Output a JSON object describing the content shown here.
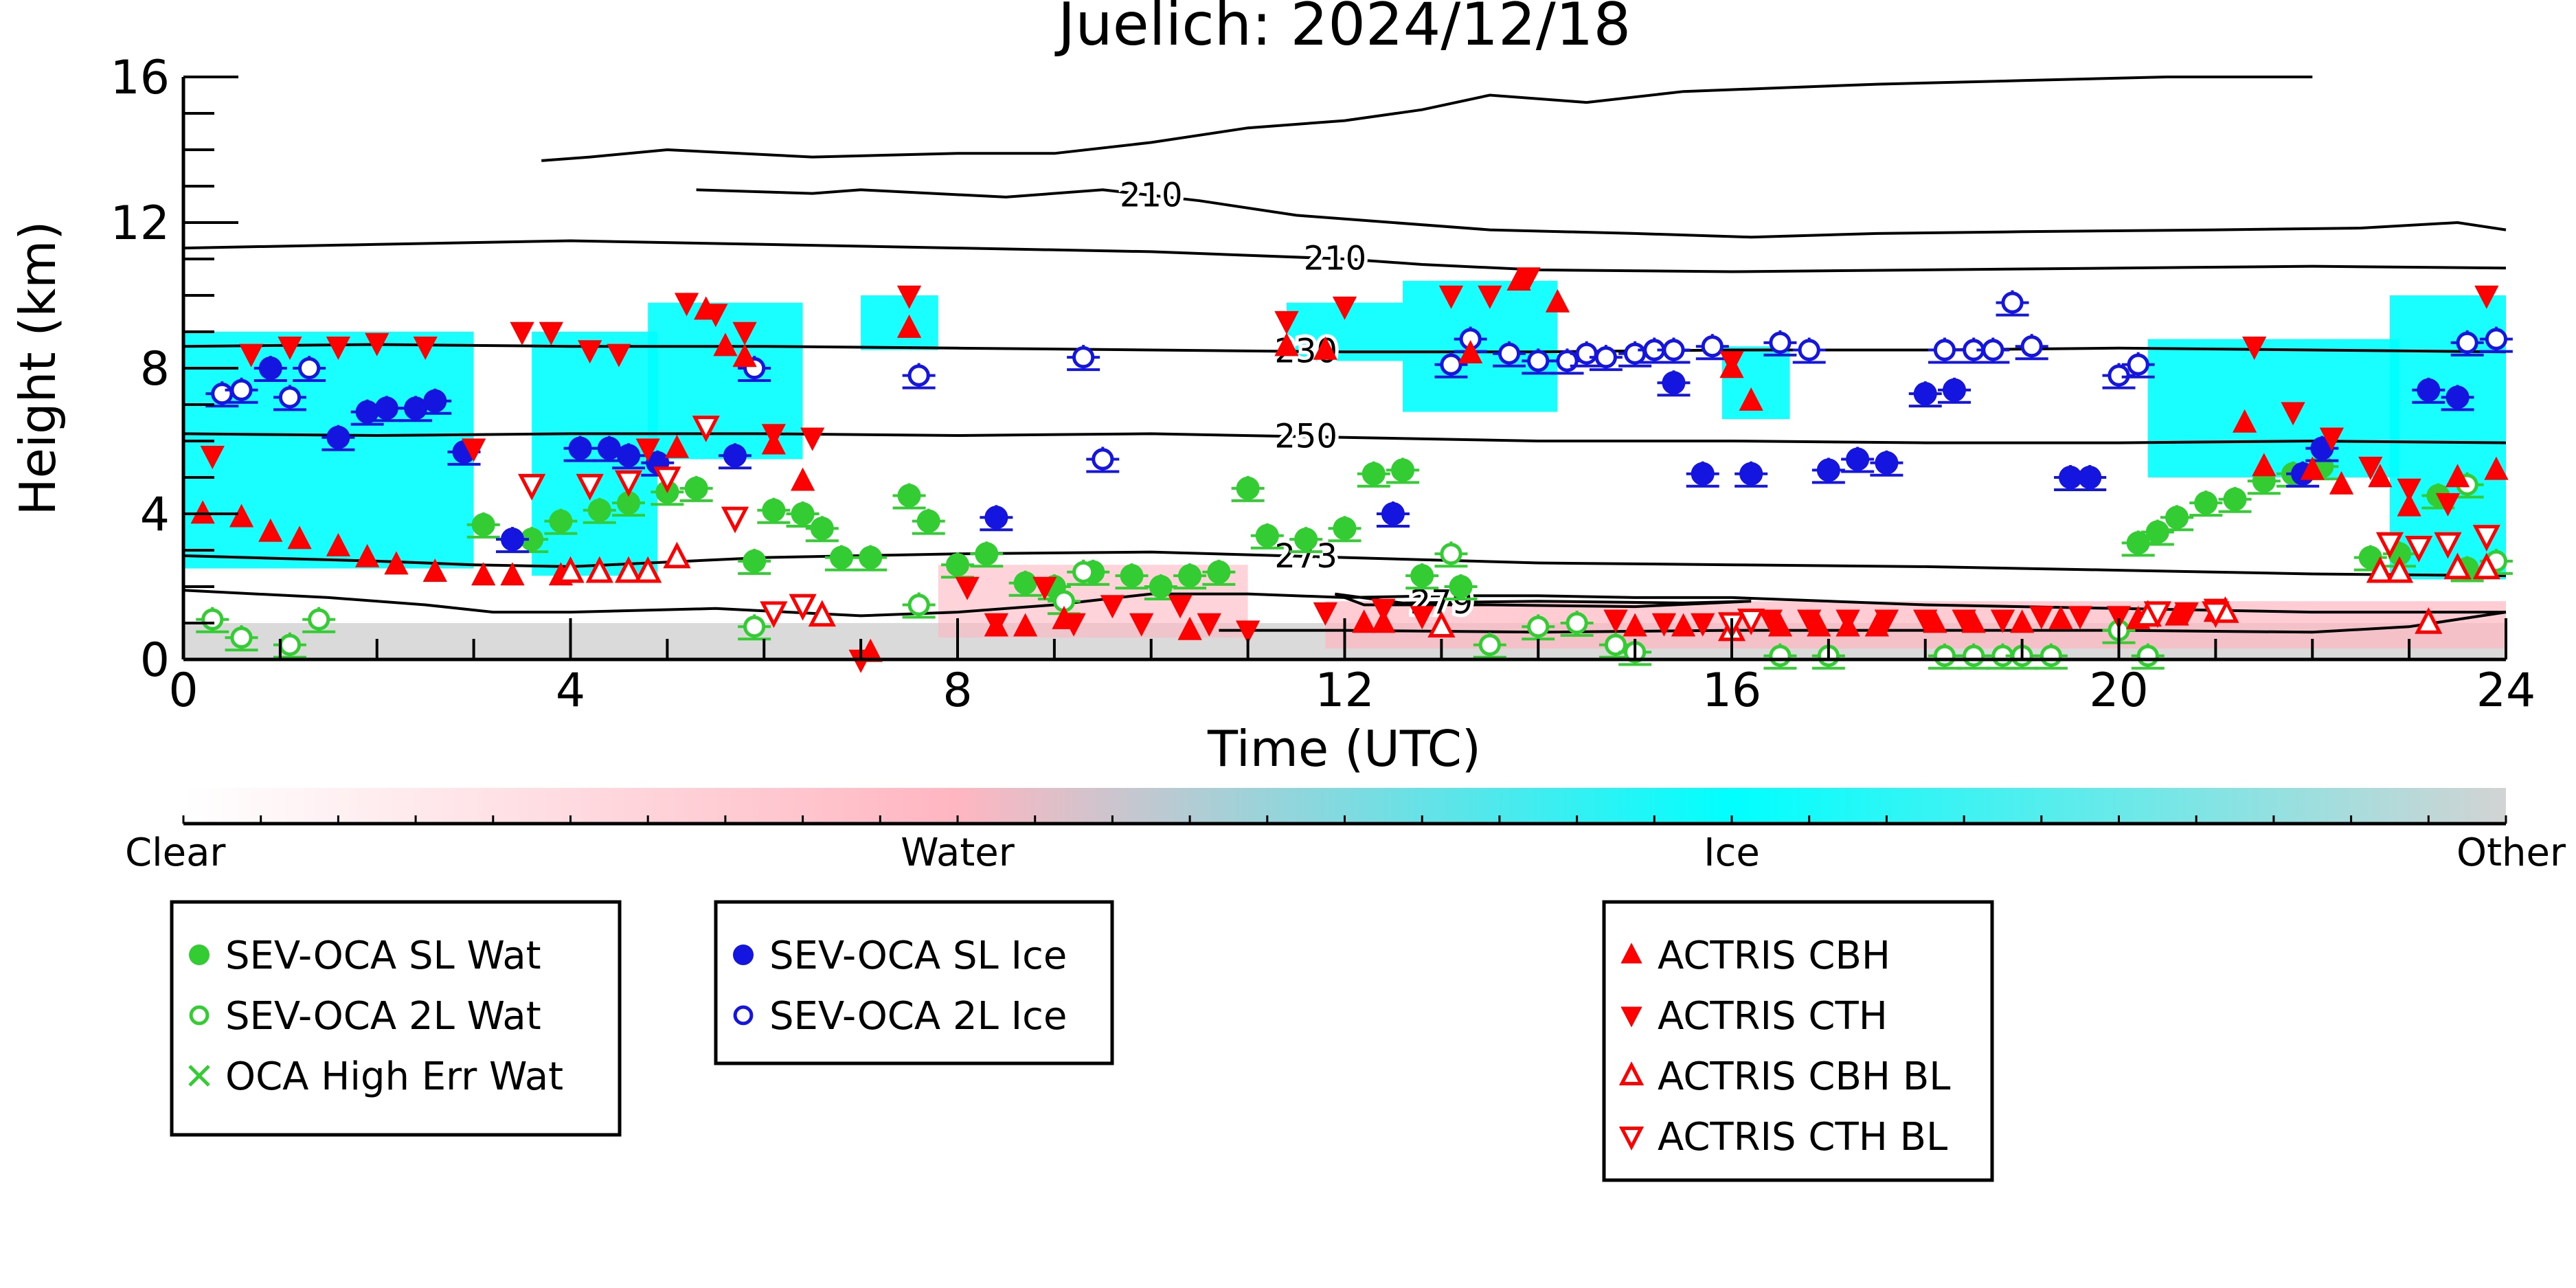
{
  "chart_data": {
    "type": "scatter",
    "title": "Juelich: 2024/12/18",
    "xlabel": "Time (UTC)",
    "ylabel": "Height (km)",
    "xlim": [
      0,
      24
    ],
    "ylim": [
      0,
      16
    ],
    "x_ticks": [
      0,
      4,
      8,
      12,
      16,
      20,
      24
    ],
    "y_ticks": [
      0,
      4,
      8,
      12,
      16
    ],
    "grid": false,
    "colorbar": {
      "labels": [
        "Clear",
        "Water",
        "Ice",
        "Other"
      ],
      "colors": [
        "#ffffff",
        "#ffb6c1",
        "#00ffff",
        "#d3d3d3"
      ]
    },
    "contours": [
      {
        "label": "210",
        "points": [
          [
            5.3,
            12.9
          ],
          [
            6.5,
            12.8
          ],
          [
            7,
            12.9
          ],
          [
            8.5,
            12.7
          ],
          [
            9.5,
            12.9
          ],
          [
            10.5,
            12.6
          ],
          [
            11.5,
            12.2
          ],
          [
            12.5,
            12.0
          ],
          [
            13.5,
            11.8
          ],
          [
            15,
            11.7
          ],
          [
            16.2,
            11.6
          ],
          [
            17.5,
            11.7
          ],
          [
            19,
            11.75
          ],
          [
            21,
            11.8
          ],
          [
            22.5,
            11.85
          ],
          [
            23.5,
            12.0
          ],
          [
            24,
            11.8
          ]
        ]
      },
      {
        "label": "210",
        "points": [
          [
            0,
            11.3
          ],
          [
            2,
            11.4
          ],
          [
            4,
            11.5
          ],
          [
            6,
            11.4
          ],
          [
            8,
            11.3
          ],
          [
            10,
            11.2
          ],
          [
            12,
            11.0
          ],
          [
            12.8,
            10.85
          ],
          [
            14,
            10.7
          ],
          [
            16,
            10.65
          ],
          [
            18,
            10.7
          ],
          [
            20,
            10.75
          ],
          [
            22,
            10.8
          ],
          [
            24,
            10.75
          ]
        ]
      },
      {
        "label": "",
        "points": [
          [
            3.7,
            13.7
          ],
          [
            4.2,
            13.8
          ],
          [
            5.0,
            14.0
          ],
          [
            6.5,
            13.8
          ],
          [
            8,
            13.9
          ],
          [
            9,
            13.9
          ],
          [
            10,
            14.2
          ],
          [
            11,
            14.6
          ],
          [
            12,
            14.8
          ],
          [
            12.8,
            15.1
          ],
          [
            13.5,
            15.5
          ],
          [
            14.5,
            15.3
          ],
          [
            15.5,
            15.6
          ],
          [
            16.5,
            15.7
          ],
          [
            17.5,
            15.8
          ],
          [
            19,
            15.9
          ],
          [
            20.5,
            16.0
          ],
          [
            22,
            16.0
          ]
        ]
      },
      {
        "label": "230",
        "points": [
          [
            0,
            8.6
          ],
          [
            2,
            8.65
          ],
          [
            4,
            8.6
          ],
          [
            6,
            8.6
          ],
          [
            8,
            8.55
          ],
          [
            10,
            8.5
          ],
          [
            12,
            8.45
          ],
          [
            14,
            8.45
          ],
          [
            16,
            8.5
          ],
          [
            18,
            8.5
          ],
          [
            20,
            8.55
          ],
          [
            22,
            8.5
          ],
          [
            24,
            8.45
          ]
        ]
      },
      {
        "label": "250",
        "points": [
          [
            0,
            6.2
          ],
          [
            2,
            6.15
          ],
          [
            4,
            6.2
          ],
          [
            6,
            6.2
          ],
          [
            8,
            6.15
          ],
          [
            10,
            6.2
          ],
          [
            12,
            6.1
          ],
          [
            14,
            6.0
          ],
          [
            16,
            6.0
          ],
          [
            18,
            5.95
          ],
          [
            20,
            5.95
          ],
          [
            22,
            6.0
          ],
          [
            24,
            5.95
          ]
        ]
      },
      {
        "label": "273",
        "points": [
          [
            0,
            2.85
          ],
          [
            2,
            2.7
          ],
          [
            3,
            2.6
          ],
          [
            4,
            2.55
          ],
          [
            6,
            2.8
          ],
          [
            8,
            2.9
          ],
          [
            10,
            2.95
          ],
          [
            12,
            2.8
          ],
          [
            14,
            2.65
          ],
          [
            16,
            2.6
          ],
          [
            18,
            2.55
          ],
          [
            20,
            2.45
          ],
          [
            22,
            2.35
          ],
          [
            24,
            2.3
          ]
        ]
      },
      {
        "label": "",
        "points": [
          [
            0,
            1.9
          ],
          [
            1.5,
            1.7
          ],
          [
            2.5,
            1.5
          ],
          [
            3.2,
            1.3
          ],
          [
            4,
            1.3
          ],
          [
            5.5,
            1.4
          ],
          [
            7,
            1.2
          ],
          [
            8,
            1.3
          ],
          [
            9,
            1.5
          ],
          [
            10,
            1.8
          ],
          [
            11,
            1.8
          ],
          [
            12,
            1.7
          ],
          [
            13,
            1.75
          ],
          [
            14,
            1.75
          ],
          [
            15,
            1.7
          ],
          [
            16,
            1.7
          ],
          [
            18,
            1.5
          ],
          [
            20,
            1.4
          ],
          [
            22,
            1.3
          ],
          [
            24,
            1.3
          ]
        ]
      },
      {
        "label": "279",
        "points": [
          [
            11.9,
            1.8
          ],
          [
            12.6,
            1.55
          ],
          [
            14,
            1.6
          ],
          [
            15.5,
            1.55
          ],
          [
            16.2,
            1.6
          ],
          [
            15,
            1.45
          ],
          [
            13.5,
            1.5
          ],
          [
            12.2,
            1.5
          ],
          [
            11.9,
            1.8
          ]
        ]
      },
      {
        "label": "",
        "points": [
          [
            10.7,
            0.8
          ],
          [
            12,
            0.8
          ],
          [
            14,
            0.75
          ],
          [
            16,
            0.8
          ],
          [
            18,
            0.8
          ],
          [
            20,
            0.8
          ],
          [
            22,
            0.75
          ],
          [
            23,
            0.9
          ],
          [
            24,
            1.3
          ]
        ]
      }
    ],
    "ice_regions": [
      {
        "x": [
          0,
          3.0
        ],
        "y": [
          2.5,
          9.0
        ]
      },
      {
        "x": [
          3.6,
          4.9
        ],
        "y": [
          2.3,
          9.0
        ]
      },
      {
        "x": [
          4.8,
          6.4
        ],
        "y": [
          5.5,
          9.8
        ]
      },
      {
        "x": [
          7.0,
          7.8
        ],
        "y": [
          8.5,
          10.0
        ]
      },
      {
        "x": [
          11.4,
          12.6
        ],
        "y": [
          8.2,
          9.8
        ]
      },
      {
        "x": [
          12.6,
          14.2
        ],
        "y": [
          6.8,
          10.4
        ]
      },
      {
        "x": [
          15.9,
          16.6
        ],
        "y": [
          6.6,
          8.6
        ]
      },
      {
        "x": [
          20.3,
          22.9
        ],
        "y": [
          5.0,
          8.8
        ]
      },
      {
        "x": [
          22.8,
          24.0
        ],
        "y": [
          2.2,
          10.0
        ]
      }
    ],
    "series": [
      {
        "name": "SEV-OCA SL Wat",
        "marker": "circle-filled",
        "color": "#33cc33",
        "x": [
          3.1,
          3.6,
          3.9,
          4.3,
          4.6,
          5.0,
          5.3,
          5.9,
          6.1,
          6.4,
          6.6,
          6.8,
          7.1,
          7.5,
          7.7,
          8.0,
          8.3,
          8.7,
          9.0,
          9.4,
          9.8,
          10.1,
          10.4,
          10.7,
          11.0,
          11.2,
          11.6,
          12.0,
          12.3,
          12.6,
          12.8,
          13.2,
          20.2,
          20.4,
          20.6,
          20.9,
          21.2,
          21.5,
          21.8,
          22.1,
          22.6,
          22.9,
          23.3,
          23.6
        ],
        "y": [
          3.7,
          3.3,
          3.8,
          4.1,
          4.3,
          4.6,
          4.7,
          2.7,
          4.1,
          4.0,
          3.6,
          2.8,
          2.8,
          4.5,
          3.8,
          2.6,
          2.9,
          2.1,
          2.0,
          2.4,
          2.3,
          2.0,
          2.3,
          2.4,
          4.7,
          3.4,
          3.3,
          3.6,
          5.1,
          5.2,
          2.3,
          2.0,
          3.2,
          3.5,
          3.9,
          4.3,
          4.4,
          4.9,
          5.1,
          5.3,
          2.8,
          2.9,
          4.5,
          2.5
        ]
      },
      {
        "name": "SEV-OCA 2L Wat",
        "marker": "circle-open",
        "color": "#33cc33",
        "x": [
          0.3,
          0.6,
          1.1,
          1.4,
          5.9,
          7.6,
          9.1,
          9.3,
          13.1,
          13.5,
          14.0,
          14.4,
          14.8,
          15.0,
          16.5,
          17.0,
          18.2,
          18.5,
          18.8,
          19.0,
          19.3,
          20.0,
          20.3,
          23.6,
          23.9
        ],
        "y": [
          1.1,
          0.6,
          0.4,
          1.1,
          0.9,
          1.5,
          1.6,
          2.4,
          2.9,
          0.4,
          0.9,
          1.0,
          0.4,
          0.2,
          0.1,
          0.1,
          0.1,
          0.1,
          0.1,
          0.1,
          0.1,
          0.8,
          0.1,
          4.8,
          2.7
        ]
      },
      {
        "name": "OCA High Err Wat",
        "marker": "x",
        "color": "#33cc33",
        "x": [],
        "y": []
      },
      {
        "name": "SEV-OCA SL Ice",
        "marker": "circle-filled",
        "color": "#1515e0",
        "x": [
          0.9,
          1.6,
          1.9,
          2.1,
          2.4,
          2.6,
          2.9,
          3.4,
          4.1,
          4.4,
          4.6,
          4.9,
          5.7,
          8.4,
          12.5,
          15.4,
          15.7,
          16.2,
          17.0,
          17.3,
          17.6,
          18.0,
          18.3,
          19.5,
          19.7,
          21.9,
          22.1,
          23.2,
          23.5
        ],
        "y": [
          8.0,
          6.1,
          6.8,
          6.9,
          6.9,
          7.1,
          5.7,
          3.3,
          5.8,
          5.8,
          5.6,
          5.4,
          5.6,
          3.9,
          4.0,
          7.6,
          5.1,
          5.1,
          5.2,
          5.5,
          5.4,
          7.3,
          7.4,
          5.0,
          5.0,
          5.1,
          5.8,
          7.4,
          7.2
        ]
      },
      {
        "name": "SEV-OCA 2L Ice",
        "marker": "circle-open",
        "color": "#1515e0",
        "x": [
          0.4,
          0.6,
          1.1,
          1.3,
          5.9,
          7.6,
          9.3,
          9.5,
          13.1,
          13.3,
          13.7,
          14.0,
          14.3,
          14.5,
          14.7,
          15.0,
          15.2,
          15.4,
          15.8,
          16.5,
          16.8,
          18.2,
          18.5,
          18.7,
          18.9,
          19.1,
          20.0,
          20.2,
          23.6,
          23.9
        ],
        "y": [
          7.3,
          7.4,
          7.2,
          8.0,
          8.0,
          7.8,
          8.3,
          5.5,
          8.1,
          8.8,
          8.4,
          8.2,
          8.2,
          8.4,
          8.3,
          8.4,
          8.5,
          8.5,
          8.6,
          8.7,
          8.5,
          8.5,
          8.5,
          8.5,
          9.8,
          8.6,
          7.8,
          8.1,
          8.7,
          8.8
        ]
      },
      {
        "name": "ACTRIS CBH",
        "marker": "triangle-up-filled",
        "color": "#ff0000",
        "x": [
          0.2,
          0.6,
          0.9,
          1.2,
          1.6,
          1.9,
          2.2,
          2.6,
          3.1,
          3.4,
          3.9,
          5.1,
          5.4,
          5.6,
          5.8,
          6.1,
          6.4,
          7.1,
          7.5,
          8.4,
          8.7,
          9.1,
          10.4,
          11.4,
          11.8,
          12.2,
          12.4,
          13.3,
          13.8,
          14.2,
          15.0,
          15.5,
          16.0,
          16.2,
          16.5,
          16.9,
          17.2,
          17.5,
          18.1,
          18.5,
          19.0,
          19.4,
          20.2,
          20.6,
          21.0,
          21.3,
          21.5,
          22.0,
          22.3,
          22.7,
          23.0,
          23.5,
          23.9
        ],
        "y": [
          4.0,
          3.9,
          3.5,
          3.3,
          3.1,
          2.8,
          2.6,
          2.4,
          2.3,
          2.3,
          2.3,
          5.8,
          9.6,
          8.6,
          8.3,
          5.9,
          4.9,
          0.2,
          9.1,
          0.9,
          0.9,
          1.1,
          0.8,
          8.6,
          8.5,
          1.0,
          1.0,
          8.4,
          10.4,
          9.8,
          0.9,
          0.9,
          8.0,
          7.1,
          0.9,
          0.9,
          0.9,
          0.9,
          1.0,
          1.0,
          1.0,
          1.1,
          1.1,
          1.2,
          1.3,
          6.5,
          5.3,
          5.2,
          4.8,
          5.0,
          4.2,
          5.0,
          5.2
        ]
      },
      {
        "name": "ACTRIS CTH",
        "marker": "triangle-down-filled",
        "color": "#ff0000",
        "x": [
          0.3,
          0.7,
          1.1,
          1.6,
          2.0,
          2.5,
          3.0,
          3.5,
          3.8,
          4.2,
          4.5,
          4.8,
          5.2,
          5.5,
          5.8,
          6.1,
          6.5,
          7.0,
          7.5,
          8.1,
          8.4,
          8.9,
          9.2,
          9.6,
          9.9,
          10.3,
          10.6,
          11.0,
          11.4,
          11.8,
          12.0,
          12.4,
          12.8,
          13.1,
          13.5,
          13.9,
          14.8,
          15.3,
          15.7,
          16.0,
          16.4,
          16.8,
          17.2,
          17.6,
          18.0,
          18.4,
          18.8,
          19.2,
          19.6,
          20.0,
          20.4,
          20.7,
          21.0,
          21.4,
          21.8,
          22.2,
          22.6,
          23.0,
          23.4,
          23.8
        ],
        "y": [
          5.6,
          8.4,
          8.6,
          8.6,
          8.7,
          8.6,
          5.8,
          9.0,
          9.0,
          8.5,
          8.4,
          5.8,
          9.8,
          9.5,
          9.0,
          6.2,
          6.1,
          0.0,
          10.0,
          2.0,
          1.0,
          2.0,
          1.0,
          1.5,
          1.0,
          1.5,
          1.0,
          0.8,
          9.3,
          1.3,
          9.7,
          1.4,
          1.2,
          10.0,
          10.0,
          10.5,
          1.1,
          1.0,
          1.0,
          8.2,
          1.1,
          1.1,
          1.1,
          1.1,
          1.1,
          1.1,
          1.1,
          1.2,
          1.2,
          1.2,
          1.3,
          1.3,
          1.4,
          8.6,
          6.8,
          6.1,
          5.3,
          4.7,
          4.3,
          10.0
        ]
      },
      {
        "name": "ACTRIS CBH BL",
        "marker": "triangle-up-open",
        "color": "#ff0000",
        "x": [
          4.0,
          4.3,
          4.6,
          4.8,
          5.1,
          6.6,
          13.0,
          16.0,
          20.3,
          21.1,
          22.7,
          22.9,
          23.2,
          23.5,
          23.8
        ],
        "y": [
          2.4,
          2.4,
          2.4,
          2.4,
          2.8,
          1.2,
          0.9,
          0.8,
          1.2,
          1.3,
          2.4,
          2.4,
          1.0,
          2.5,
          2.5
        ]
      },
      {
        "name": "ACTRIS CTH BL",
        "marker": "triangle-down-open",
        "color": "#ff0000",
        "x": [
          3.6,
          4.2,
          4.6,
          5.0,
          5.4,
          5.7,
          6.1,
          6.4,
          16.0,
          16.2,
          20.4,
          21.0,
          22.8,
          23.1,
          23.4,
          23.8
        ],
        "y": [
          4.8,
          4.8,
          4.9,
          5.0,
          6.4,
          3.9,
          1.3,
          1.5,
          1.0,
          1.1,
          1.3,
          1.3,
          3.2,
          3.1,
          3.2,
          3.4
        ]
      }
    ],
    "legend": [
      [
        "SEV-OCA SL Wat",
        "SEV-OCA 2L Wat",
        "OCA High Err Wat"
      ],
      [
        "SEV-OCA SL Ice",
        "SEV-OCA 2L Ice"
      ],
      [
        "ACTRIS CBH",
        "ACTRIS CTH",
        "ACTRIS CBH BL",
        "ACTRIS CTH BL"
      ]
    ]
  }
}
